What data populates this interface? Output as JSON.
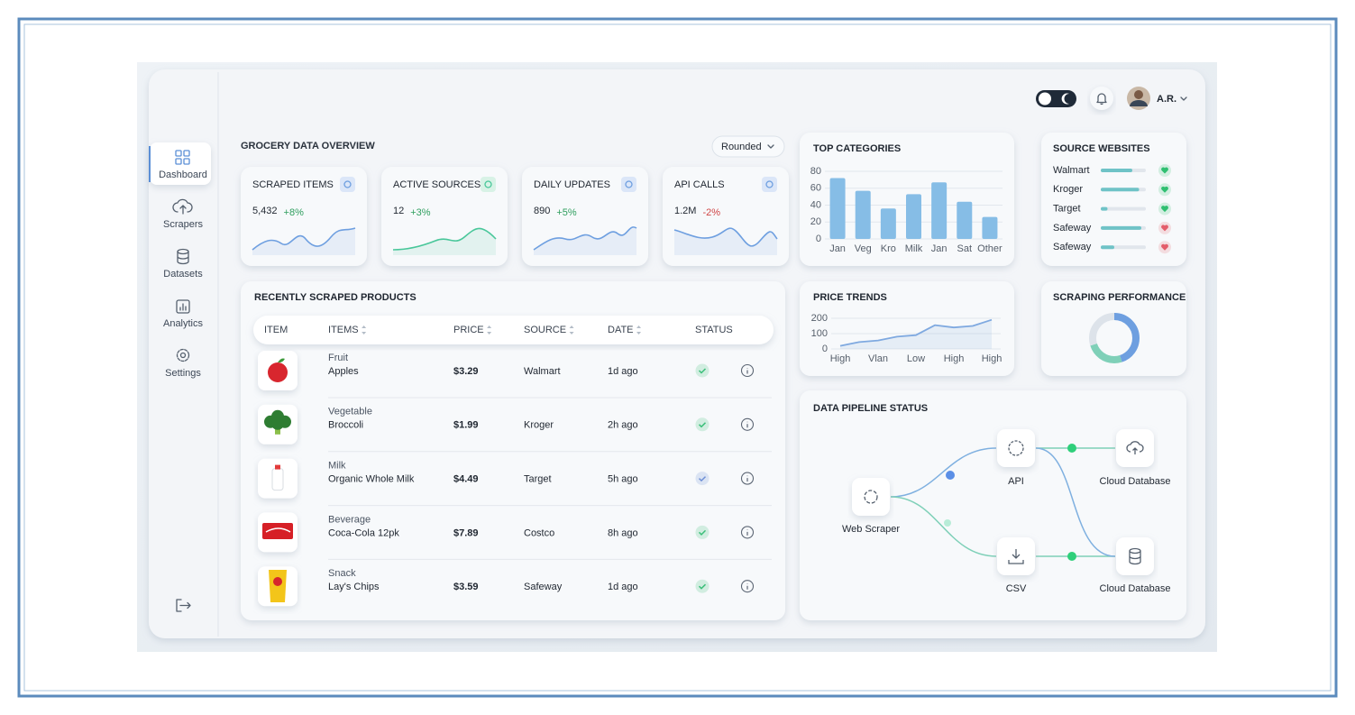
{
  "sidebar": {
    "items": [
      "Dashboard",
      "Scrapers",
      "Datasets",
      "Analytics",
      "Settings"
    ]
  },
  "header": {
    "user": "A.R."
  },
  "overview": {
    "title": "GROCERY DATA OVERVIEW",
    "view": "Rounded"
  },
  "stats": [
    {
      "label": "SCRAPED ITEMS",
      "value": "5,432",
      "change": "+8%",
      "color": "#2f9e5e"
    },
    {
      "label": "ACTIVE SOURCES",
      "value": "12",
      "change": "+3%",
      "color": "#2f9e5e"
    },
    {
      "label": "DAILY UPDATES",
      "value": "890",
      "change": "+5%",
      "color": "#2f9e5e"
    },
    {
      "label": "API CALLS",
      "value": "1.2M",
      "change": "-2%",
      "color": "#d04545"
    }
  ],
  "chart_data": [
    {
      "type": "bar",
      "title": "TOP CATEGORIES",
      "categories": [
        "Jan",
        "Veg",
        "Kro",
        "Milk",
        "Jan",
        "Sat",
        "Other"
      ],
      "values": [
        72,
        57,
        36,
        53,
        67,
        44,
        26
      ],
      "color": "#86bde6",
      "ylim": [
        0,
        80
      ],
      "yticks": [
        0,
        20,
        40,
        60,
        80
      ],
      "grid": true
    },
    {
      "type": "line",
      "title": "PRICE TRENDS",
      "categories": [
        "High",
        null,
        "Vlan",
        null,
        "Low",
        null,
        "High",
        null,
        "High"
      ],
      "values": [
        20,
        45,
        55,
        80,
        90,
        155,
        140,
        150,
        190
      ],
      "color": "#7fa9e0",
      "ylim": [
        0,
        200
      ],
      "yticks": [
        0,
        100,
        200
      ],
      "grid": true
    },
    {
      "type": "pie",
      "title": "SCRAPING PERFORMANCE",
      "values": [
        45,
        25,
        30
      ],
      "colors": [
        "#6e9fe0",
        "#7fd0b8",
        "#dde3ea"
      ]
    }
  ],
  "source_websites": {
    "title": "SOURCE WEBSITES",
    "items": [
      {
        "name": "Walmart",
        "value": 70,
        "color": "#2fbf71"
      },
      {
        "name": "Kroger",
        "value": 85,
        "color": "#2fbf71"
      },
      {
        "name": "Target",
        "value": 15,
        "color": "#2fbf71"
      },
      {
        "name": "Safeway",
        "value": 90,
        "color": "#e35d6a"
      },
      {
        "name": "Safeway",
        "value": 30,
        "color": "#e35d6a"
      }
    ]
  },
  "products": {
    "title": "RECENTLY SCRAPED PRODUCTS",
    "columns": [
      "ITEM",
      "ITEMS",
      "PRICE",
      "SOURCE",
      "DATE",
      "STATUS"
    ],
    "rows": [
      {
        "category": "Fruit",
        "name": "Apples",
        "price": "$3.29",
        "source": "Walmart",
        "date": "1d ago",
        "color": "#3cbf7a"
      },
      {
        "category": "Vegetable",
        "name": "Broccoli",
        "price": "$1.99",
        "source": "Kroger",
        "date": "2h ago",
        "color": "#3cbf7a"
      },
      {
        "category": "Milk",
        "name": "Organic Whole Milk",
        "price": "$4.49",
        "source": "Target",
        "date": "5h ago",
        "color": "#6e8fd6"
      },
      {
        "category": "Beverage",
        "name": "Coca-Cola 12pk",
        "price": "$7.89",
        "source": "Costco",
        "date": "8h ago",
        "color": "#3cbf7a"
      },
      {
        "category": "Snack",
        "name": "Lay's Chips",
        "price": "$3.59",
        "source": "Safeway",
        "date": "1d ago",
        "color": "#3cbf7a"
      }
    ]
  },
  "pipeline": {
    "title": "DATA PIPELINE STATUS",
    "nodes": [
      "Web Scraper",
      "API",
      "CSV",
      "Cloud Database",
      "Cloud Database"
    ]
  }
}
